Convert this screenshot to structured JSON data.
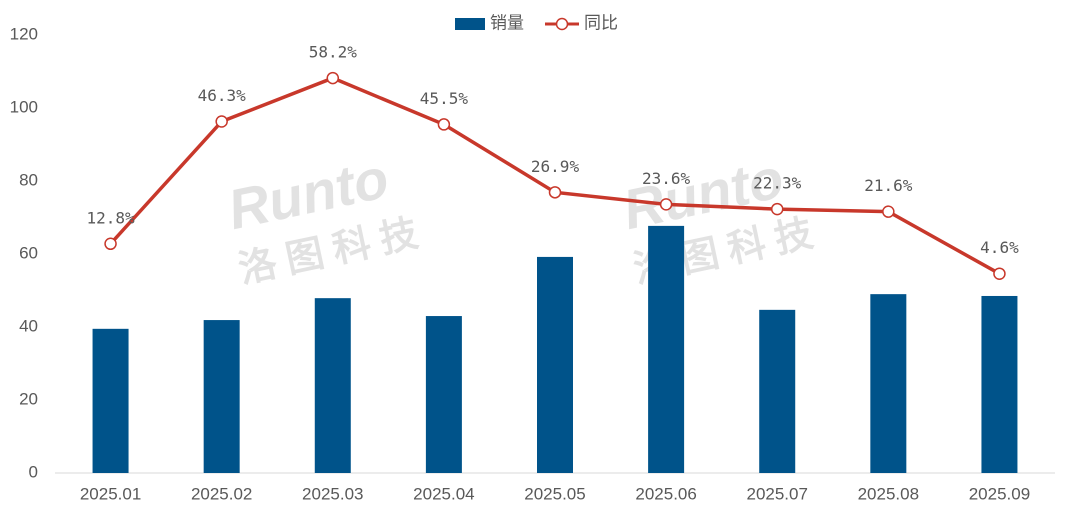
{
  "chart_data": {
    "type": "combo",
    "categories": [
      "2025.01",
      "2025.02",
      "2025.03",
      "2025.04",
      "2025.05",
      "2025.06",
      "2025.07",
      "2025.08",
      "2025.09"
    ],
    "series": [
      {
        "name": "销量",
        "type": "bar",
        "color": "#00538a",
        "values": [
          39.5,
          41.9,
          47.9,
          43,
          59.2,
          67.7,
          44.7,
          49,
          48.5
        ]
      },
      {
        "name": "同比",
        "type": "line",
        "axis": "y2",
        "color": "#c8382b",
        "values": [
          12.8,
          46.3,
          58.2,
          45.5,
          26.9,
          23.6,
          22.3,
          21.6,
          4.6
        ],
        "value_labels": [
          "12.8%",
          "46.3%",
          "58.2%",
          "45.5%",
          "26.9%",
          "23.6%",
          "22.3%",
          "21.6%",
          "4.6%"
        ]
      }
    ],
    "ylim": [
      0,
      120
    ],
    "yticks": [
      0,
      20,
      40,
      60,
      80,
      100,
      120
    ],
    "y2lim": [
      -50,
      70
    ],
    "grid": false,
    "legend": "top",
    "watermark": [
      "Runto",
      "洛图科技"
    ]
  }
}
